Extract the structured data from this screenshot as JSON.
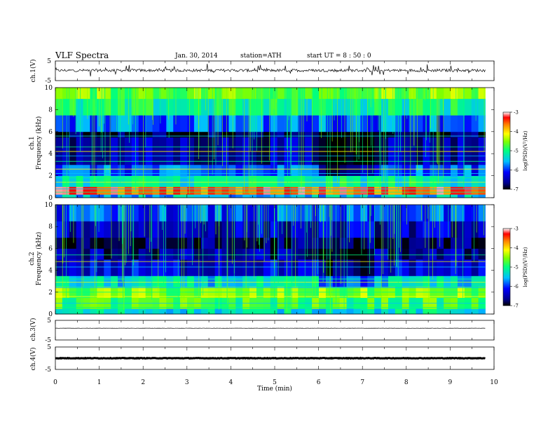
{
  "header": {
    "title": "VLF  Spectra",
    "date": "Jan. 30, 2014",
    "station": "station=ATH",
    "start": "start  UT  =   8  : 50 : 0"
  },
  "chart_data": {
    "type": "heatmap",
    "x_label": "Time  (min)",
    "x_range": [
      0,
      10
    ],
    "x_ticks": [
      "0",
      "1",
      "2",
      "3",
      "4",
      "5",
      "6",
      "7",
      "8",
      "9",
      "10"
    ],
    "data_end_min": 9.8,
    "panels": [
      {
        "kind": "waveform",
        "ylabel": "ch.1(V)",
        "y_range": [
          -5,
          5
        ],
        "y_ticks": [
          "5",
          "-5"
        ],
        "mean_level": 0.2,
        "noise_amplitude": 1.4,
        "color": "#000000"
      },
      {
        "kind": "spectrogram",
        "ylabel_line1": "ch.1",
        "ylabel_line2": "Frequency  (kHz)",
        "y_range": [
          0,
          10
        ],
        "y_ticks": [
          "0",
          "2",
          "4",
          "6",
          "8",
          "10"
        ],
        "colorbar": {
          "label": "log(PSD)(V²/Hz)",
          "range": [
            -7,
            -3
          ],
          "ticks": [
            "-3",
            "-4",
            "-5",
            "-6",
            "-7"
          ]
        },
        "bands_khz": [
          {
            "f": [
              0,
              0.3
            ],
            "log_psd": -5.5
          },
          {
            "f": [
              0.3,
              1.0
            ],
            "log_psd": -3.5
          },
          {
            "f": [
              1.0,
              2.0
            ],
            "log_psd": -5.2
          },
          {
            "f": [
              2.0,
              3.0
            ],
            "log_psd": -5.9
          },
          {
            "f": [
              3.0,
              5.5
            ],
            "log_psd": -6.5
          },
          {
            "f": [
              5.5,
              6.0
            ],
            "log_psd": -6.9
          },
          {
            "f": [
              6.0,
              7.5
            ],
            "log_psd": -5.8
          },
          {
            "f": [
              7.5,
              9.0
            ],
            "log_psd": -5.1
          },
          {
            "f": [
              9.0,
              10.0
            ],
            "log_psd": -4.6
          }
        ],
        "quiet_interval_min": [
          6.0,
          7.3
        ],
        "line_frequencies_khz": [
          0.5,
          0.8,
          1.4,
          1.8,
          2.2,
          2.6,
          3.3,
          3.8,
          4.2,
          4.6,
          5.6
        ]
      },
      {
        "kind": "spectrogram",
        "ylabel_line1": "ch.2",
        "ylabel_line2": "Frequency  (kHz)",
        "y_range": [
          0,
          10
        ],
        "y_ticks": [
          "0",
          "2",
          "4",
          "6",
          "8",
          "10"
        ],
        "colorbar": {
          "label": "log(PSD)(V²/Hz)",
          "range": [
            -7,
            -3
          ],
          "ticks": [
            "-3",
            "-4",
            "-5",
            "-6",
            "-7"
          ]
        },
        "bands_khz": [
          {
            "f": [
              0,
              0.5
            ],
            "log_psd": -5.3
          },
          {
            "f": [
              0.5,
              1.5
            ],
            "log_psd": -4.8
          },
          {
            "f": [
              1.5,
              2.5
            ],
            "log_psd": -4.6
          },
          {
            "f": [
              2.5,
              3.5
            ],
            "log_psd": -5.4
          },
          {
            "f": [
              3.5,
              5.0
            ],
            "log_psd": -6.3
          },
          {
            "f": [
              5.0,
              6.0
            ],
            "log_psd": -6.6
          },
          {
            "f": [
              6.0,
              7.0
            ],
            "log_psd": -6.8
          },
          {
            "f": [
              7.0,
              8.5
            ],
            "log_psd": -6.4
          },
          {
            "f": [
              8.5,
              10.0
            ],
            "log_psd": -6.0
          }
        ],
        "quiet_interval_min": [
          6.0,
          7.3
        ],
        "line_frequencies_khz": [
          0.6,
          1.0,
          1.6,
          2.0,
          2.4,
          2.9,
          3.2,
          4.3,
          4.8,
          5.4
        ]
      },
      {
        "kind": "waveform",
        "ylabel": "ch.3(V)",
        "y_range": [
          -5,
          5
        ],
        "y_ticks": [
          "5",
          "-5"
        ],
        "mean_level": 1.0,
        "noise_amplitude": 0.1,
        "color": "#000000"
      },
      {
        "kind": "waveform",
        "ylabel": "ch.4(V)",
        "y_range": [
          -5,
          5
        ],
        "y_ticks": [
          "5",
          "-5"
        ],
        "mean_level": 0.0,
        "noise_amplitude": 0.25,
        "color": "#000000"
      }
    ]
  }
}
